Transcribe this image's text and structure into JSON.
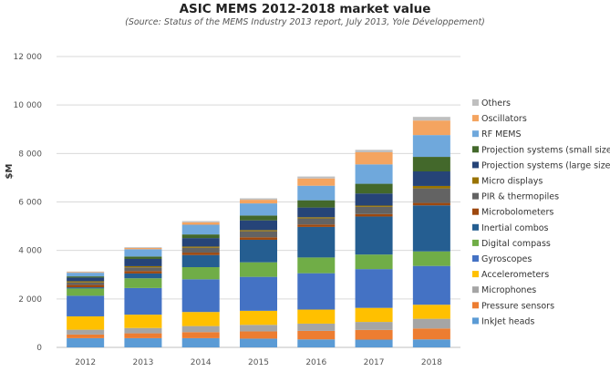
{
  "chart_data": {
    "type": "bar",
    "stacked": true,
    "title": "ASIC MEMS 2012-2018 market value",
    "subtitle": "(Source: Status of the MEMS Industry 2013 report, July 2013, Yole Développement)",
    "xlabel": "",
    "ylabel": "$M",
    "ylim": [
      0,
      12000
    ],
    "yticks": [
      0,
      2000,
      4000,
      6000,
      8000,
      10000,
      12000
    ],
    "ytick_labels": [
      "0",
      "2 000",
      "4 000",
      "6 000",
      "8 000",
      "10 000",
      "12 000"
    ],
    "grid": true,
    "legend_position": "right",
    "categories": [
      "2012",
      "2013",
      "2014",
      "2015",
      "2016",
      "2017",
      "2018"
    ],
    "series": [
      {
        "name": "InkJet heads",
        "color": "#5b9bd5",
        "values": [
          380,
          380,
          380,
          360,
          330,
          320,
          330
        ]
      },
      {
        "name": "Pressure sensors",
        "color": "#ed7d31",
        "values": [
          150,
          200,
          250,
          300,
          350,
          400,
          450
        ]
      },
      {
        "name": "Microphones",
        "color": "#a5a5a5",
        "values": [
          200,
          220,
          250,
          270,
          300,
          330,
          400
        ]
      },
      {
        "name": "Accelerometers",
        "color": "#ffc000",
        "values": [
          550,
          550,
          580,
          580,
          580,
          580,
          580
        ]
      },
      {
        "name": "Gyroscopes",
        "color": "#4472c4",
        "values": [
          850,
          1100,
          1350,
          1400,
          1500,
          1600,
          1600
        ]
      },
      {
        "name": "Digital compass",
        "color": "#70ad47",
        "values": [
          300,
          400,
          500,
          600,
          650,
          600,
          600
        ]
      },
      {
        "name": "Inertial combos",
        "color": "#255e91",
        "values": [
          50,
          200,
          500,
          930,
          1260,
          1570,
          1900
        ]
      },
      {
        "name": "Microbolometers",
        "color": "#9e480e",
        "values": [
          100,
          100,
          100,
          100,
          100,
          100,
          100
        ]
      },
      {
        "name": "PIR & thermopiles",
        "color": "#636363",
        "values": [
          100,
          150,
          200,
          250,
          250,
          300,
          600
        ]
      },
      {
        "name": "Micro displays",
        "color": "#997300",
        "values": [
          50,
          50,
          50,
          50,
          50,
          50,
          100
        ]
      },
      {
        "name": "Projection systems (large size)",
        "color": "#264478",
        "values": [
          150,
          300,
          350,
          400,
          400,
          500,
          600
        ]
      },
      {
        "name": "Projection systems (small size)",
        "color": "#43682b",
        "values": [
          50,
          100,
          150,
          200,
          300,
          400,
          600
        ]
      },
      {
        "name": "RF MEMS",
        "color": "#6fa8dc",
        "values": [
          150,
          300,
          400,
          500,
          600,
          800,
          900
        ]
      },
      {
        "name": "Oscillators",
        "color": "#f4a460",
        "values": [
          30,
          50,
          100,
          150,
          300,
          500,
          600
        ]
      },
      {
        "name": "Others",
        "color": "#bfbfbf",
        "values": [
          20,
          30,
          50,
          60,
          80,
          100,
          150
        ]
      }
    ]
  }
}
